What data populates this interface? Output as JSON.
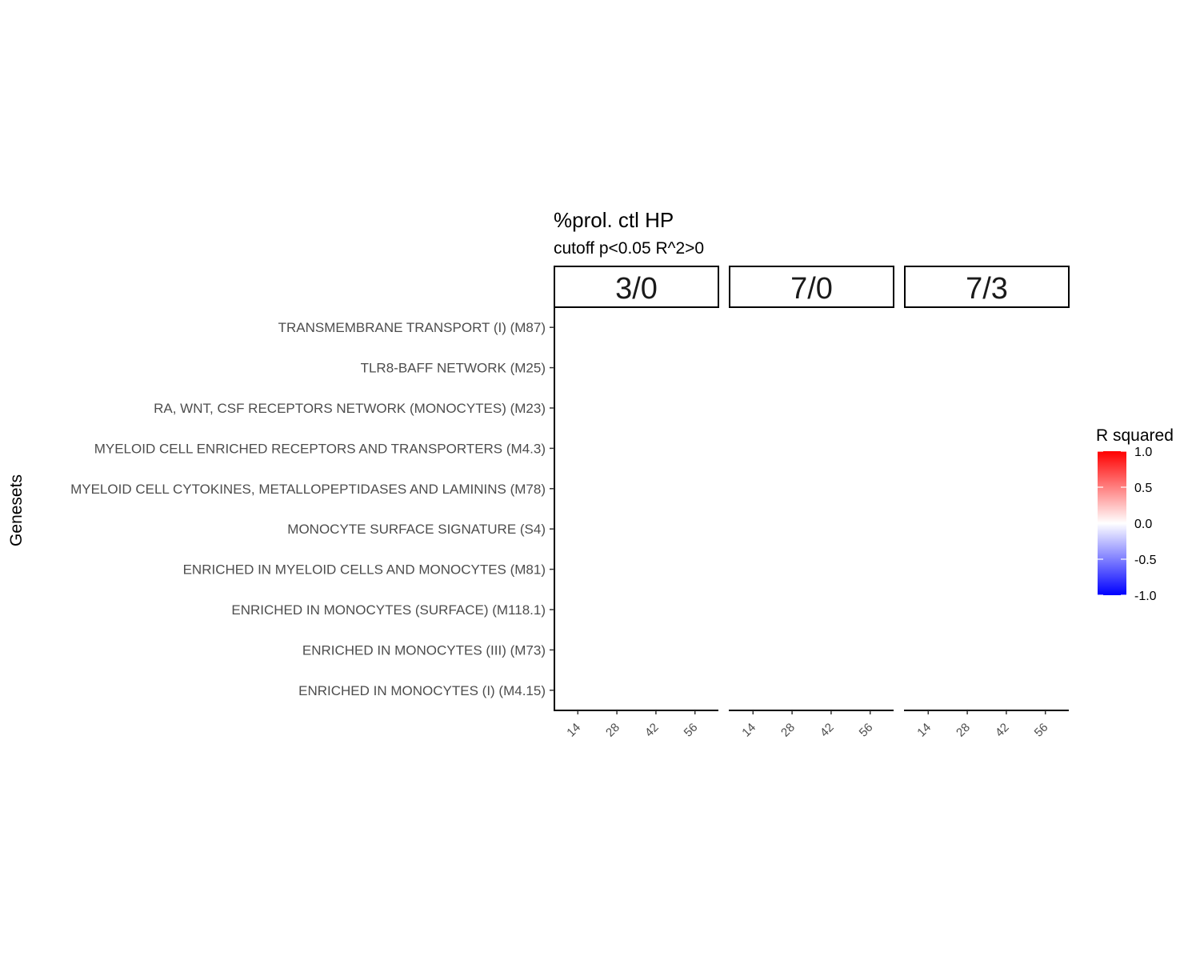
{
  "chart_data": {
    "type": "heatmap",
    "title": "%prol. ctl HP",
    "subtitle": "cutoff p<0.05 R^2>0",
    "ylabel": "Genesets",
    "xlabel": "",
    "facets": [
      "3/0",
      "7/0",
      "7/3"
    ],
    "x": [
      14,
      28,
      42,
      56
    ],
    "categories": [
      "TRANSMEMBRANE TRANSPORT (I) (M87)",
      "TLR8-BAFF NETWORK (M25)",
      "RA, WNT, CSF RECEPTORS NETWORK (MONOCYTES) (M23)",
      "MYELOID CELL ENRICHED RECEPTORS AND TRANSPORTERS (M4.3)",
      "MYELOID CELL CYTOKINES, METALLOPEPTIDASES AND LAMININS (M78)",
      "MONOCYTE SURFACE SIGNATURE (S4)",
      "ENRICHED IN MYELOID CELLS AND MONOCYTES (M81)",
      "ENRICHED IN MONOCYTES (SURFACE) (M118.1)",
      "ENRICHED IN MONOCYTES (III) (M73)",
      "ENRICHED IN MONOCYTES (I) (M4.15)"
    ],
    "cells": [],
    "legend": {
      "title": "R squared",
      "ticks": [
        "1.0",
        "0.5",
        "0.0",
        "-0.5",
        "-1.0"
      ],
      "range": [
        -1.0,
        1.0
      ],
      "colors": {
        "high": "#ff0000",
        "mid": "#ffffff",
        "low": "#0000ff"
      },
      "placement": "right"
    },
    "grid": false
  }
}
